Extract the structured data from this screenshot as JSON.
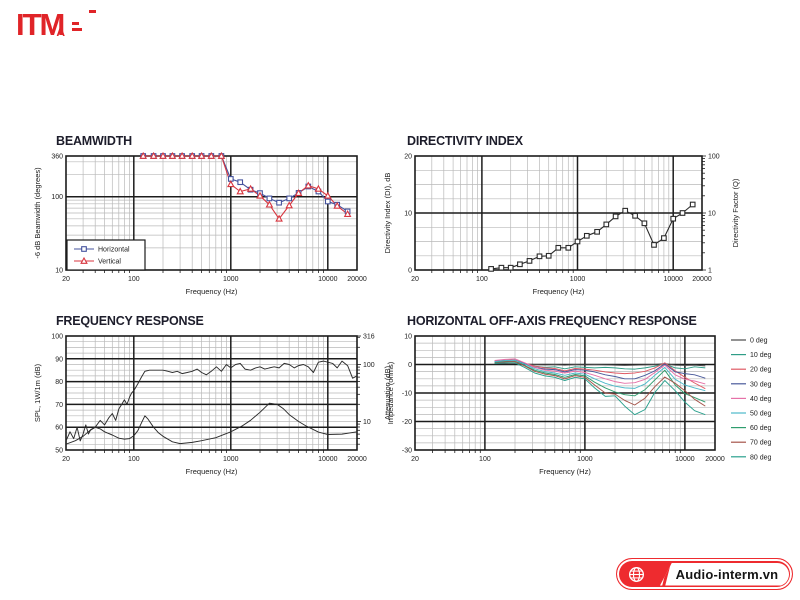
{
  "logo": {
    "text": "ITM",
    "sub": "A",
    "color": "#e02428"
  },
  "footer": {
    "label": "Audio-interm.vn",
    "bg": "#ee2b2f"
  },
  "chart_data": [
    {
      "id": "beamwidth",
      "type": "line",
      "title": "BEAMWIDTH",
      "xlabel": "Frequency (Hz)",
      "ylabel": "-6 dB Beamwidth (degrees)",
      "xscale": "log",
      "yscale": "log",
      "xlim": [
        20,
        20000
      ],
      "ylim": [
        10,
        360
      ],
      "xticks": [
        20,
        100,
        1000,
        10000,
        20000
      ],
      "yticks": [
        10,
        100,
        360
      ],
      "yminor": [
        20,
        30,
        40,
        50,
        60,
        70,
        80,
        90,
        200,
        300
      ],
      "legend_position": "inside-bottom-left",
      "x": [
        125,
        160,
        200,
        250,
        315,
        400,
        500,
        630,
        800,
        1000,
        1250,
        1600,
        2000,
        2500,
        3150,
        4000,
        5000,
        6300,
        8000,
        10000,
        12500,
        16000
      ],
      "series": [
        {
          "name": "Horizontal",
          "color": "#45539e",
          "marker": "square",
          "values": [
            360,
            360,
            360,
            360,
            360,
            360,
            360,
            360,
            360,
            175,
            158,
            125,
            112,
            95,
            83,
            95,
            113,
            138,
            118,
            86,
            78,
            63
          ]
        },
        {
          "name": "Vertical",
          "color": "#d8363f",
          "marker": "triangle",
          "values": [
            360,
            360,
            360,
            360,
            360,
            360,
            360,
            360,
            360,
            148,
            118,
            128,
            103,
            78,
            50,
            76,
            112,
            142,
            128,
            103,
            75,
            58
          ]
        }
      ]
    },
    {
      "id": "directivity-index",
      "type": "line",
      "title": "DIRECTIVITY INDEX",
      "xlabel": "Frequency (Hz)",
      "ylabel": "Directivity Index (DI), dB",
      "xscale": "log",
      "yscale": "linear",
      "xlim": [
        20,
        20000
      ],
      "ylim": [
        0,
        20
      ],
      "xticks": [
        20,
        100,
        1000,
        10000,
        20000
      ],
      "yticks": [
        0,
        10,
        20
      ],
      "yminor_step": 2.5,
      "y2": {
        "label": "Directivity Factor (Q)",
        "scale": "log",
        "lim": [
          1,
          100
        ],
        "ticks": [
          1,
          10,
          100
        ]
      },
      "x": [
        125,
        160,
        200,
        250,
        315,
        400,
        500,
        630,
        800,
        1000,
        1250,
        1600,
        2000,
        2500,
        3150,
        4000,
        5000,
        6300,
        8000,
        10000,
        12500,
        16000
      ],
      "series": [
        {
          "name": "DI",
          "color": "#2b2b2b",
          "marker": "square",
          "values": [
            0.2,
            0.4,
            0.4,
            1.0,
            1.6,
            2.4,
            2.5,
            3.9,
            3.9,
            5.0,
            6.0,
            6.7,
            8.0,
            9.4,
            10.4,
            9.5,
            8.2,
            4.4,
            5.6,
            9.0,
            10.0,
            11.5
          ]
        }
      ]
    },
    {
      "id": "frequency-response",
      "type": "line",
      "title": "FREQUENCY RESPONSE",
      "xlabel": "Frequency (Hz)",
      "ylabel": "SPL, 1W/1m (dB)",
      "xscale": "log",
      "yscale": "linear",
      "xlim": [
        20,
        20000
      ],
      "ylim": [
        50,
        100
      ],
      "xticks": [
        20,
        100,
        1000,
        10000,
        20000
      ],
      "yticks": [
        50,
        60,
        70,
        80,
        90,
        100
      ],
      "yminor_step": 2.5,
      "y2": {
        "label": "Impedance (ohms)",
        "scale": "log",
        "lim": [
          3.16,
          316
        ],
        "ticks": [
          10,
          100,
          316
        ]
      },
      "series": [
        {
          "name": "SPL",
          "color": "#2b2b2b",
          "axis": "y",
          "x": [
            20,
            22,
            24,
            26,
            28,
            30,
            32,
            34,
            36,
            40,
            45,
            50,
            55,
            60,
            65,
            70,
            75,
            80,
            85,
            90,
            95,
            100,
            110,
            120,
            130,
            145,
            160,
            180,
            200,
            225,
            250,
            280,
            315,
            355,
            400,
            450,
            500,
            560,
            630,
            710,
            800,
            900,
            1000,
            1120,
            1250,
            1400,
            1600,
            1800,
            2000,
            2240,
            2500,
            2800,
            3150,
            3550,
            4000,
            4500,
            5000,
            5600,
            6300,
            7100,
            8000,
            9000,
            10000,
            11200,
            12500,
            14000,
            16000,
            18000,
            20000
          ],
          "values": [
            54,
            58,
            55,
            60,
            54,
            57,
            61,
            57,
            59,
            60,
            63,
            61,
            64,
            66,
            63,
            68,
            70,
            72,
            70,
            73,
            75,
            76,
            79,
            82,
            84.5,
            85,
            85,
            85,
            85,
            84.5,
            84,
            84.5,
            83.5,
            84,
            84.5,
            85.5,
            84,
            83,
            84.5,
            86.5,
            84.5,
            87.5,
            86,
            87.5,
            88,
            85.5,
            85,
            86,
            86.5,
            85.5,
            86,
            86.5,
            86,
            88,
            87.5,
            86,
            87,
            87.5,
            86.5,
            84,
            88.5,
            89,
            88.5,
            88,
            86,
            89,
            87,
            81.5,
            82.5
          ]
        },
        {
          "name": "Impedance",
          "color": "#2b2b2b",
          "axis": "y2",
          "x": [
            20,
            25,
            30,
            35,
            40,
            45,
            50,
            60,
            70,
            80,
            90,
            100,
            110,
            120,
            130,
            140,
            160,
            180,
            200,
            250,
            300,
            400,
            500,
            700,
            1000,
            1300,
            1600,
            2000,
            2500,
            3000,
            3500,
            4000,
            5000,
            6000,
            8000,
            10000,
            14000,
            20000
          ],
          "values": [
            4.0,
            4.6,
            5.5,
            6.9,
            7.9,
            7.4,
            6.6,
            5.8,
            5.1,
            4.9,
            5.0,
            5.6,
            6.9,
            9.5,
            12.6,
            11.0,
            7.9,
            6.3,
            5.5,
            4.4,
            4.1,
            4.3,
            4.6,
            5.2,
            6.6,
            8.3,
            10.5,
            14.5,
            20.9,
            20.0,
            16.6,
            13.2,
            10.0,
            8.3,
            6.5,
            5.9,
            6.0,
            6.6
          ]
        }
      ]
    },
    {
      "id": "off-axis",
      "type": "line",
      "title": "HORIZONTAL OFF-AXIS FREQUENCY RESPONSE",
      "xlabel": "Frequency (Hz)",
      "ylabel": "Attenuation (dB)",
      "xscale": "log",
      "yscale": "linear",
      "xlim": [
        20,
        20000
      ],
      "ylim": [
        -30,
        10
      ],
      "xticks": [
        20,
        100,
        1000,
        10000,
        20000
      ],
      "yticks": [
        -30,
        -20,
        -10,
        0,
        10
      ],
      "yminor_step": 2.5,
      "legend_position": "right",
      "x": [
        125,
        160,
        200,
        250,
        315,
        400,
        500,
        630,
        800,
        1000,
        1250,
        1600,
        2000,
        2500,
        3150,
        4000,
        5000,
        6300,
        8000,
        10000,
        12500,
        16000
      ],
      "series": [
        {
          "name": "0 deg",
          "color": "#4a4a4a",
          "values": [
            0.3,
            0.4,
            0.5,
            0.1,
            0,
            -0.1,
            0,
            -0.2,
            0,
            -0.1,
            0,
            -0.1,
            -0.2,
            -0.3,
            -0.2,
            -0.1,
            0,
            0.3,
            -0.2,
            -0.3,
            -0.2,
            -0.5
          ]
        },
        {
          "name": "10 deg",
          "color": "#2f9d87",
          "values": [
            0.8,
            1.0,
            1.0,
            0.1,
            -0.6,
            -1.0,
            -0.8,
            -1.5,
            -0.8,
            -1.0,
            -1.2,
            -1.0,
            -1.2,
            -1.5,
            -1.6,
            -1.2,
            -0.6,
            0.2,
            -1.2,
            -1.5,
            -0.8,
            -1.2
          ]
        },
        {
          "name": "20 deg",
          "color": "#e05a64",
          "values": [
            1.2,
            1.5,
            1.6,
            0.5,
            -0.6,
            -1.2,
            -1.4,
            -2.2,
            -1.4,
            -1.6,
            -2.0,
            -2.6,
            -3.0,
            -3.2,
            -3.0,
            -2.4,
            -1.2,
            0.6,
            -2.2,
            -4.5,
            -6.5,
            -8.5
          ]
        },
        {
          "name": "30 deg",
          "color": "#4a5a9b",
          "values": [
            1.0,
            1.4,
            1.5,
            0.4,
            -1.0,
            -1.6,
            -1.8,
            -2.6,
            -1.8,
            -2.0,
            -2.6,
            -3.6,
            -4.2,
            -5.0,
            -5.0,
            -3.8,
            -2.2,
            0.2,
            -2.6,
            -3.2,
            -3.6,
            -4.8
          ]
        },
        {
          "name": "40 deg",
          "color": "#e671a8",
          "values": [
            1.4,
            1.8,
            2.0,
            0.6,
            -1.0,
            -2.0,
            -2.3,
            -3.0,
            -2.3,
            -2.8,
            -3.8,
            -5.0,
            -6.0,
            -6.6,
            -6.4,
            -5.2,
            -2.8,
            -0.2,
            -3.6,
            -5.2,
            -5.8,
            -6.8
          ]
        },
        {
          "name": "50 deg",
          "color": "#4db9c9",
          "values": [
            1.0,
            1.4,
            1.5,
            0.1,
            -1.5,
            -2.5,
            -3.0,
            -3.8,
            -3.0,
            -3.4,
            -5.0,
            -6.6,
            -7.6,
            -8.2,
            -8.4,
            -6.8,
            -3.8,
            -1.0,
            -5.2,
            -7.2,
            -8.2,
            -9.2
          ]
        },
        {
          "name": "60 deg",
          "color": "#2f9d6e",
          "values": [
            0.6,
            1.0,
            1.1,
            -0.4,
            -2.0,
            -3.0,
            -3.5,
            -4.5,
            -3.5,
            -4.0,
            -6.2,
            -8.2,
            -9.6,
            -10.6,
            -11.0,
            -8.8,
            -5.4,
            -2.0,
            -7.2,
            -10.2,
            -11.6,
            -13.2
          ]
        },
        {
          "name": "70 deg",
          "color": "#a5544a",
          "values": [
            0.5,
            0.9,
            1.0,
            -0.5,
            -2.4,
            -3.4,
            -3.9,
            -5.0,
            -3.9,
            -4.5,
            -7.2,
            -10.0,
            -10.4,
            -12.6,
            -14.2,
            -11.8,
            -7.8,
            -4.4,
            -6.6,
            -9.2,
            -12.2,
            -14.6
          ]
        },
        {
          "name": "80 deg",
          "color": "#2aa08d",
          "values": [
            0.4,
            0.6,
            0.6,
            -1.0,
            -3.0,
            -4.0,
            -4.5,
            -5.6,
            -4.5,
            -5.0,
            -8.2,
            -11.2,
            -11.0,
            -14.6,
            -17.6,
            -15.8,
            -9.8,
            -5.6,
            -9.2,
            -13.2,
            -16.2,
            -17.6
          ]
        }
      ]
    }
  ]
}
